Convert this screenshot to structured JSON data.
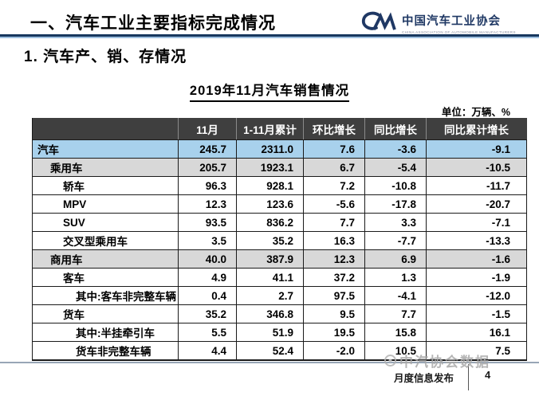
{
  "slide": {
    "header_title": "一、汽车工业主要指标完成情况",
    "logo": {
      "org_name": "中国汽车工业协会",
      "org_name_en": "CHINA ASSOCIATION OF AUTOMOBILE MANUFACTURERS",
      "brand_color": "#1f3864"
    },
    "section_title": "1. 汽车产、销、存情况",
    "table_title": "2019年11月汽车销售情况",
    "unit_label": "单位：万辆、%",
    "watermark_text": "中汽协会数据",
    "footer": {
      "label": "月度信息发布",
      "page_number": "4"
    }
  },
  "colors": {
    "accent_navy": "#17375e",
    "accent_light_blue": "#9fc0e0",
    "table_header_bg": "#3f3f3f",
    "row_highlight_blue": "#a8d1ec",
    "row_highlight_gray": "#d8d8d8"
  },
  "chart_data": {
    "type": "table",
    "title": "2019年11月汽车销售情况",
    "unit": "万辆、%",
    "columns": [
      "",
      "11月",
      "1-11月累计",
      "环比增长",
      "同比增长",
      "同比累计增长"
    ],
    "rows": [
      {
        "label": "汽车",
        "indent": 0,
        "highlight": "blue",
        "values": [
          "245.7",
          "2311.0",
          "7.6",
          "-3.6",
          "-9.1"
        ]
      },
      {
        "label": "乘用车",
        "indent": 1,
        "highlight": "gray",
        "values": [
          "205.7",
          "1923.1",
          "6.7",
          "-5.4",
          "-10.5"
        ]
      },
      {
        "label": "轿车",
        "indent": 2,
        "highlight": "none",
        "values": [
          "96.3",
          "928.1",
          "7.2",
          "-10.8",
          "-11.7"
        ]
      },
      {
        "label": "MPV",
        "indent": 2,
        "highlight": "none",
        "values": [
          "12.3",
          "123.6",
          "-5.6",
          "-17.8",
          "-20.7"
        ]
      },
      {
        "label": "SUV",
        "indent": 2,
        "highlight": "none",
        "values": [
          "93.5",
          "836.2",
          "7.7",
          "3.3",
          "-7.1"
        ]
      },
      {
        "label": "交叉型乘用车",
        "indent": 2,
        "highlight": "none",
        "values": [
          "3.5",
          "35.2",
          "16.3",
          "-7.7",
          "-13.3"
        ]
      },
      {
        "label": "商用车",
        "indent": 1,
        "highlight": "gray",
        "values": [
          "40.0",
          "387.9",
          "12.3",
          "6.9",
          "-1.6"
        ]
      },
      {
        "label": "客车",
        "indent": 2,
        "highlight": "none",
        "values": [
          "4.9",
          "41.1",
          "37.2",
          "1.3",
          "-1.9"
        ]
      },
      {
        "label": "其中:客车非完整车辆",
        "indent": 3,
        "highlight": "none",
        "values": [
          "0.4",
          "2.7",
          "97.5",
          "-4.1",
          "-12.0"
        ]
      },
      {
        "label": "货车",
        "indent": 2,
        "highlight": "none",
        "values": [
          "35.2",
          "346.8",
          "9.5",
          "7.7",
          "-1.5"
        ]
      },
      {
        "label": "其中:半挂牵引车",
        "indent": 3,
        "highlight": "none",
        "values": [
          "5.5",
          "51.9",
          "19.5",
          "15.8",
          "16.1"
        ]
      },
      {
        "label": "货车非完整车辆",
        "indent": 3,
        "highlight": "none",
        "values": [
          "4.4",
          "52.4",
          "-2.0",
          "10.5",
          "7.5"
        ]
      }
    ]
  }
}
